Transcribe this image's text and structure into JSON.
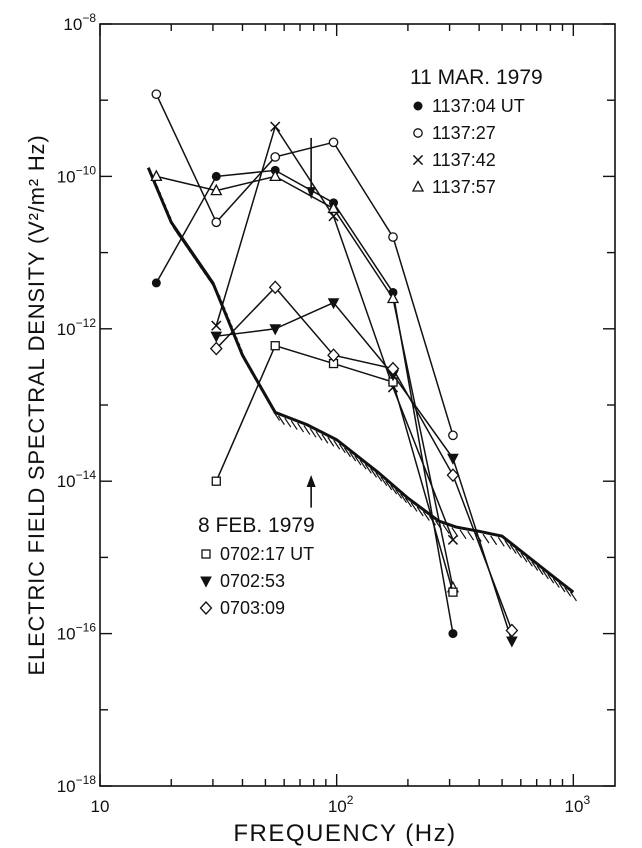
{
  "chart_data": {
    "type": "line",
    "xlabel": "FREQUENCY (Hz)",
    "ylabel": "ELECTRIC FIELD SPECTRAL DENSITY (V²/m² Hz)",
    "xscale": "log",
    "yscale": "log",
    "xlim": [
      10,
      1500
    ],
    "ylim": [
      1e-18,
      1e-08
    ],
    "x_ticks": [
      {
        "value": 10,
        "base": "10",
        "exp": ""
      },
      {
        "value": 100,
        "base": "10",
        "exp": "2"
      },
      {
        "value": 1000,
        "base": "10",
        "exp": "3"
      }
    ],
    "y_ticks": [
      {
        "value": 1e-18,
        "base": "10",
        "exp": "−18"
      },
      {
        "value": 1e-16,
        "base": "10",
        "exp": "−16"
      },
      {
        "value": 1e-14,
        "base": "10",
        "exp": "−14"
      },
      {
        "value": 1e-12,
        "base": "10",
        "exp": "−12"
      },
      {
        "value": 1e-10,
        "base": "10",
        "exp": "−10"
      },
      {
        "value": 1e-08,
        "base": "10",
        "exp": "−8"
      }
    ],
    "groups": [
      {
        "heading": "11 MAR. 1979",
        "series": [
          {
            "name": "1137:04 UT",
            "marker": "filled-circle",
            "x": [
              17.3,
              31,
              55,
              97,
              173,
              310
            ],
            "y": [
              4e-12,
              1e-10,
              1.2e-10,
              4.5e-11,
              3e-12,
              1e-16
            ]
          },
          {
            "name": "1137:27",
            "marker": "open-circle",
            "x": [
              17.3,
              31,
              55,
              97,
              173,
              310
            ],
            "y": [
              1.2e-09,
              2.5e-11,
              1.8e-10,
              2.8e-10,
              1.6e-11,
              4e-14
            ]
          },
          {
            "name": "1137:42",
            "marker": "x",
            "x": [
              31,
              55,
              97,
              173,
              310
            ],
            "y": [
              1.1e-12,
              4.5e-10,
              3e-11,
              1.7e-13,
              1.7e-15
            ]
          },
          {
            "name": "1137:57",
            "marker": "open-triangle",
            "x": [
              17.3,
              31,
              55,
              97,
              173,
              310
            ],
            "y": [
              1e-10,
              6.5e-11,
              1e-10,
              3.8e-11,
              2.5e-12,
              4e-16
            ]
          }
        ]
      },
      {
        "heading": "8 FEB. 1979",
        "series": [
          {
            "name": "0702:17 UT",
            "marker": "open-square",
            "x": [
              31,
              55,
              97,
              173,
              310
            ],
            "y": [
              1e-14,
              6e-13,
              3.5e-13,
              2e-13,
              3.5e-16
            ]
          },
          {
            "name": "0702:53",
            "marker": "filled-down-triangle",
            "x": [
              31,
              55,
              97,
              173,
              310,
              550
            ],
            "y": [
              8e-13,
              1e-12,
              2.2e-12,
              2.5e-13,
              2e-14,
              8e-17
            ]
          },
          {
            "name": "0703:09",
            "marker": "open-diamond",
            "x": [
              31,
              55,
              97,
              173,
              310,
              550
            ],
            "y": [
              5.5e-13,
              3.5e-12,
              4.5e-13,
              3e-13,
              1.2e-14,
              1.1e-16
            ]
          }
        ]
      }
    ],
    "noise_threshold": {
      "x": [
        16,
        20,
        30,
        40,
        55,
        75,
        100,
        150,
        200,
        270,
        320,
        400,
        500,
        650,
        800,
        1000
      ],
      "y": [
        1.3e-10,
        2.5e-11,
        4e-12,
        4.5e-13,
        8e-14,
        5.5e-14,
        3.5e-14,
        1.3e-14,
        6e-15,
        3e-15,
        2.5e-15,
        2.2e-15,
        1.9e-15,
        1e-15,
        6e-16,
        3.5e-16
      ]
    },
    "arrows": [
      {
        "x": 78,
        "y_from": 3.2e-10,
        "y_to": 5.5e-11,
        "direction": "down"
      },
      {
        "x": 78,
        "y_from": 4.5e-15,
        "y_to": 1.1e-14,
        "direction": "up"
      }
    ]
  }
}
